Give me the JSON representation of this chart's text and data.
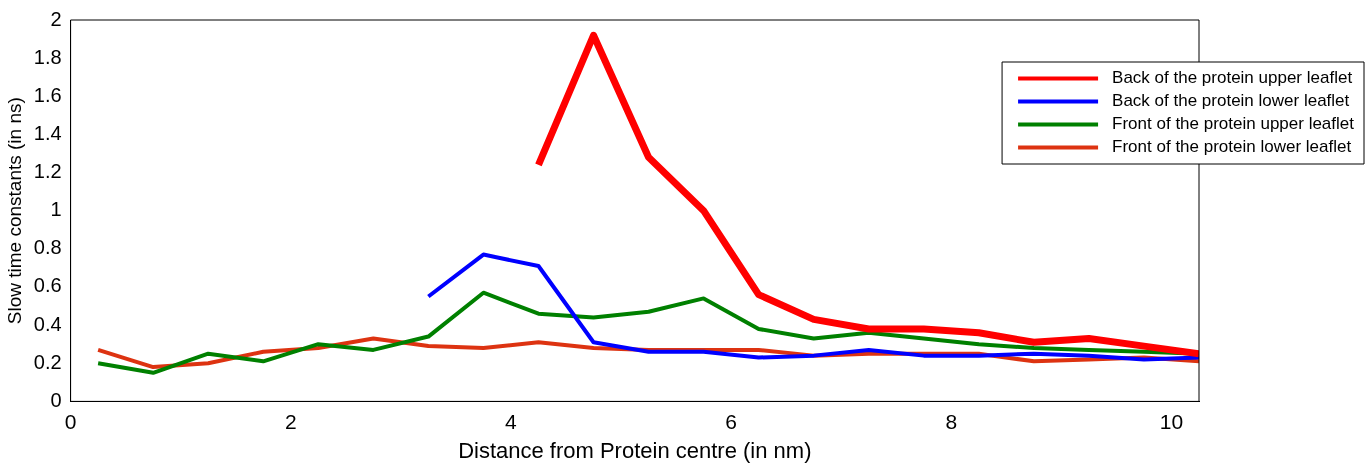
{
  "chart_data": {
    "type": "line",
    "xlabel": "Distance from Protein centre (in nm)",
    "ylabel": "Slow time constants (in ns)",
    "x": [
      0.25,
      0.75,
      1.25,
      1.75,
      2.25,
      2.75,
      3.25,
      3.75,
      4.25,
      4.75,
      5.25,
      5.75,
      6.25,
      6.75,
      7.25,
      7.75,
      8.25,
      8.75,
      9.25,
      9.75,
      10.25
    ],
    "series": [
      {
        "name": "Back of the protein upper leaflet",
        "color": "#ff0000",
        "values": [
          null,
          null,
          null,
          null,
          null,
          null,
          null,
          null,
          1.24,
          1.92,
          1.28,
          1.0,
          0.56,
          0.43,
          0.38,
          0.38,
          0.36,
          0.31,
          0.33,
          0.29,
          0.25
        ]
      },
      {
        "name": "Back of the protein lower leaflet",
        "color": "#0000ff",
        "values": [
          null,
          null,
          null,
          null,
          null,
          null,
          0.55,
          0.77,
          0.71,
          0.31,
          0.26,
          0.26,
          0.23,
          0.24,
          0.27,
          0.24,
          0.24,
          0.25,
          0.24,
          0.22,
          0.23
        ]
      },
      {
        "name": "Front of the protein upper leaflet",
        "color": "#008000",
        "values": [
          0.2,
          0.15,
          0.25,
          0.21,
          0.3,
          0.27,
          0.34,
          0.57,
          0.46,
          0.44,
          0.47,
          0.54,
          0.38,
          0.33,
          0.36,
          0.33,
          0.3,
          0.28,
          0.27,
          0.26,
          0.25
        ]
      },
      {
        "name": "Front of the protein lower leaflet",
        "color": "#dd3311",
        "values": [
          0.27,
          0.18,
          0.2,
          0.26,
          0.28,
          0.33,
          0.29,
          0.28,
          0.31,
          0.28,
          0.27,
          0.27,
          0.27,
          0.24,
          0.25,
          0.25,
          0.25,
          0.21,
          0.22,
          0.23,
          0.21
        ]
      }
    ],
    "xlim": [
      0,
      10.25
    ],
    "xticks": [
      0,
      2,
      4,
      6,
      8,
      10
    ],
    "ylim": [
      0,
      2
    ],
    "yticks": [
      0,
      0.2,
      0.4,
      0.6,
      0.8,
      1,
      1.2,
      1.4,
      1.6,
      1.8,
      2
    ],
    "grid": false,
    "legend": "top right",
    "marker": "none",
    "line_style": "solid"
  }
}
